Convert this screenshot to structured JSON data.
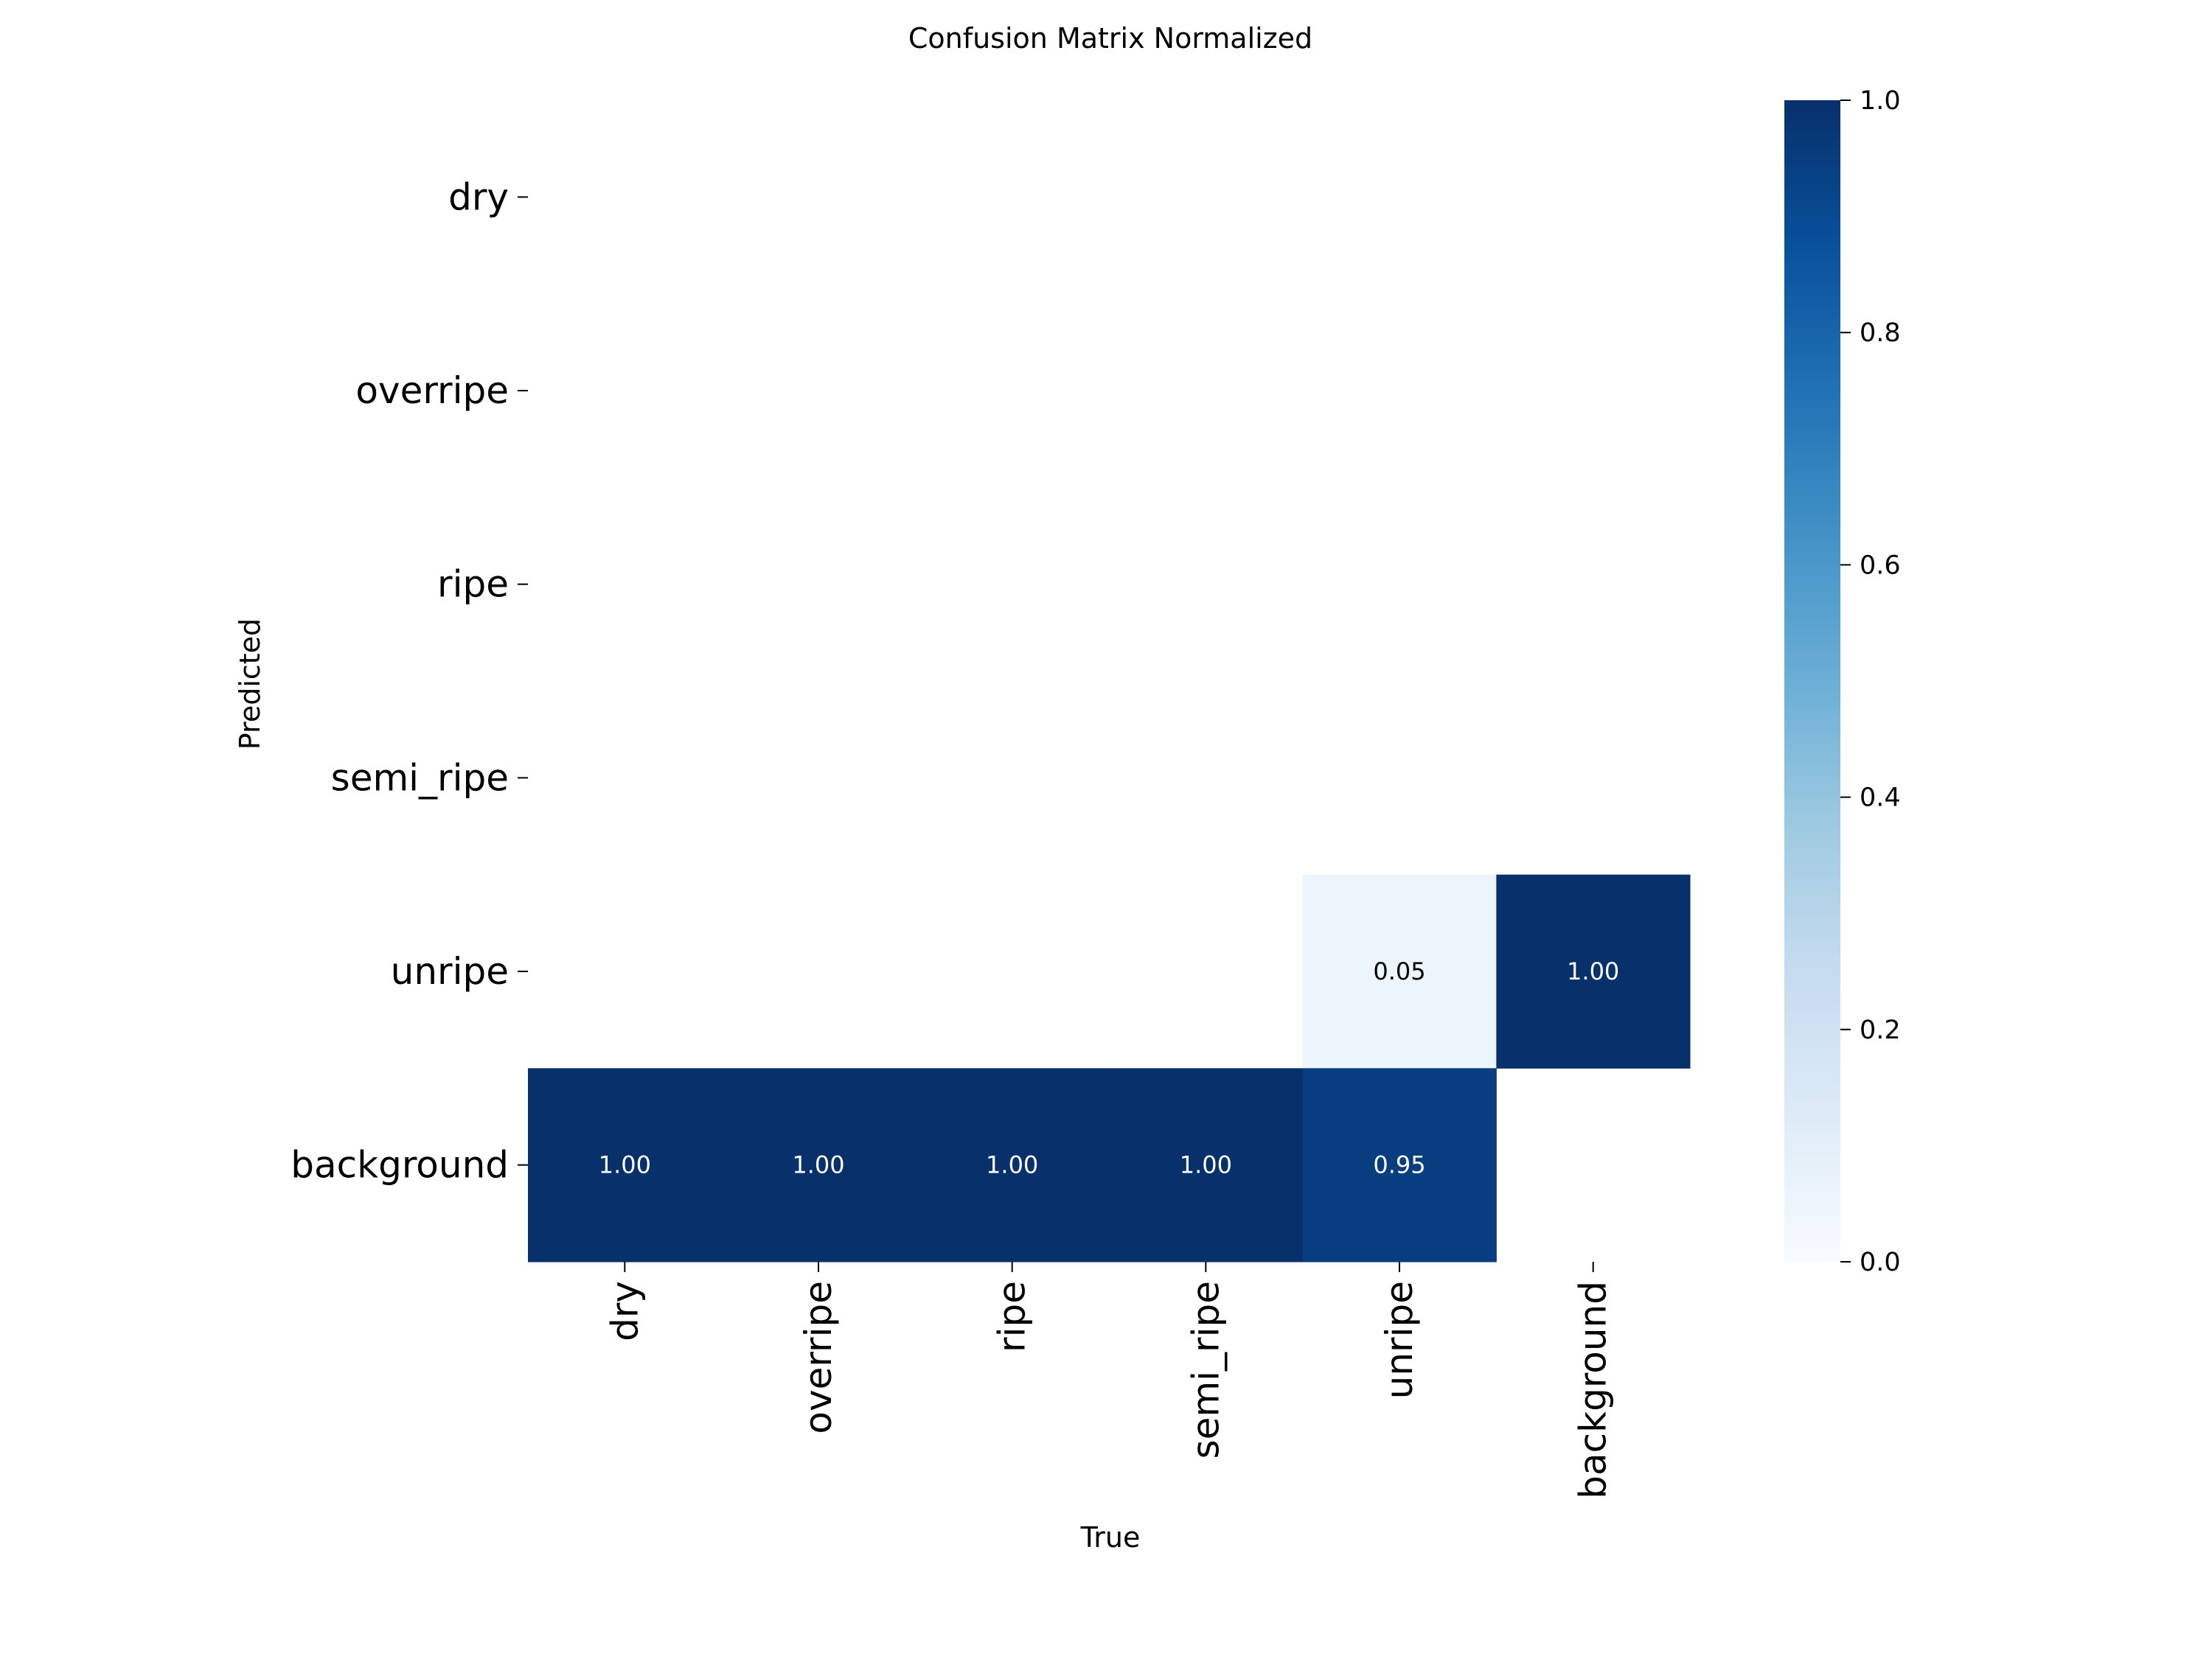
{
  "chart_data": {
    "type": "heatmap",
    "title": "Confusion Matrix Normalized",
    "xlabel": "True",
    "ylabel": "Predicted",
    "x_categories": [
      "dry",
      "overripe",
      "ripe",
      "semi_ripe",
      "unripe",
      "background"
    ],
    "y_categories": [
      "dry",
      "overripe",
      "ripe",
      "semi_ripe",
      "unripe",
      "background"
    ],
    "values": [
      [
        null,
        null,
        null,
        null,
        null,
        null
      ],
      [
        null,
        null,
        null,
        null,
        null,
        null
      ],
      [
        null,
        null,
        null,
        null,
        null,
        null
      ],
      [
        null,
        null,
        null,
        null,
        null,
        null
      ],
      [
        null,
        null,
        null,
        null,
        0.05,
        1.0
      ],
      [
        1.0,
        1.0,
        1.0,
        1.0,
        0.95,
        null
      ]
    ],
    "colormap": "Blues",
    "vmin": 0.0,
    "vmax": 1.0,
    "colorbar_ticks": [
      "0.0",
      "0.2",
      "0.4",
      "0.6",
      "0.8",
      "1.0"
    ],
    "value_format": "0.00"
  }
}
